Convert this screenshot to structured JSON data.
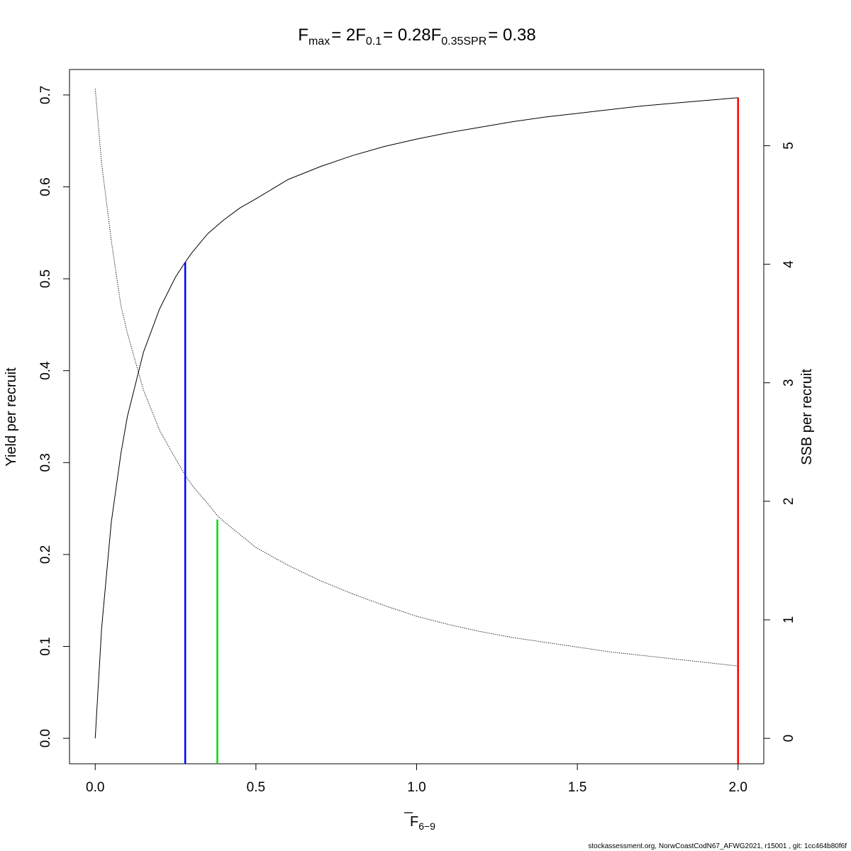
{
  "chart_data": {
    "type": "line",
    "title": {
      "fmax_label": "F",
      "fmax_sub": "max",
      "fmax_value": "= 2",
      "f01_label": "F",
      "f01_sub": "0.1",
      "f01_value": "= 0.28",
      "fspr_label": "F",
      "fspr_sub": "0.35SPR",
      "fspr_value": "= 0.38"
    },
    "xlabel": "F",
    "xlabel_sub": "6−9",
    "ylabel_left": "Yield per recruit",
    "ylabel_right": "SSB per recruit",
    "xlim": [
      -0.08,
      2.08
    ],
    "ylim_left": [
      -0.0277,
      0.7277
    ],
    "ylim_right": [
      -0.2146,
      5.6431
    ],
    "x_ticks": [
      "0.0",
      "0.5",
      "1.0",
      "1.5",
      "2.0"
    ],
    "x_tick_values": [
      0,
      0.5,
      1.0,
      1.5,
      2.0
    ],
    "y_left_ticks": [
      "0.0",
      "0.1",
      "0.2",
      "0.3",
      "0.4",
      "0.5",
      "0.6",
      "0.7"
    ],
    "y_left_tick_values": [
      0,
      0.1,
      0.2,
      0.3,
      0.4,
      0.5,
      0.6,
      0.7
    ],
    "y_right_ticks": [
      "0",
      "1",
      "2",
      "3",
      "4",
      "5"
    ],
    "y_right_tick_values": [
      0,
      1,
      2,
      3,
      4,
      5
    ],
    "series": [
      {
        "axis": "left",
        "style": "solid",
        "color": "#000000",
        "x": [
          0,
          0.02,
          0.05,
          0.08,
          0.1,
          0.15,
          0.2,
          0.25,
          0.28,
          0.3,
          0.35,
          0.38,
          0.4,
          0.45,
          0.5,
          0.6,
          0.7,
          0.8,
          0.9,
          1.0,
          1.1,
          1.2,
          1.3,
          1.4,
          1.5,
          1.6,
          1.7,
          1.8,
          1.9,
          2.0
        ],
        "values": [
          0.0,
          0.12,
          0.235,
          0.31,
          0.35,
          0.42,
          0.467,
          0.502,
          0.518,
          0.528,
          0.549,
          0.558,
          0.564,
          0.577,
          0.587,
          0.608,
          0.622,
          0.634,
          0.644,
          0.652,
          0.659,
          0.665,
          0.671,
          0.676,
          0.68,
          0.684,
          0.688,
          0.691,
          0.694,
          0.697
        ]
      },
      {
        "axis": "right",
        "style": "dotted",
        "color": "#000000",
        "x": [
          0,
          0.02,
          0.05,
          0.08,
          0.1,
          0.15,
          0.2,
          0.25,
          0.28,
          0.3,
          0.35,
          0.38,
          0.4,
          0.45,
          0.5,
          0.6,
          0.7,
          0.8,
          0.9,
          1.0,
          1.1,
          1.2,
          1.3,
          1.4,
          1.5,
          1.6,
          1.7,
          1.8,
          1.9,
          2.0
        ],
        "values": [
          5.48,
          4.85,
          4.2,
          3.65,
          3.42,
          2.94,
          2.6,
          2.36,
          2.22,
          2.14,
          1.98,
          1.88,
          1.83,
          1.72,
          1.61,
          1.46,
          1.33,
          1.22,
          1.12,
          1.03,
          0.96,
          0.9,
          0.85,
          0.81,
          0.77,
          0.73,
          0.7,
          0.67,
          0.64,
          0.61
        ]
      }
    ],
    "reference_lines": [
      {
        "name": "F0.1",
        "x": 0.28,
        "y_top": 0.518,
        "color": "#0000ff"
      },
      {
        "name": "F0.35SPR",
        "x": 0.38,
        "y_top": 0.238,
        "color": "#00dd00"
      },
      {
        "name": "Fmax",
        "x": 2.0,
        "y_top": 0.697,
        "color": "#ff0000"
      }
    ],
    "grid": false,
    "legend": "none"
  },
  "footer": "stockassessment.org, NorwCoastCodN67_AFWG2021, r15001 , git: 1cc464b80f6f"
}
